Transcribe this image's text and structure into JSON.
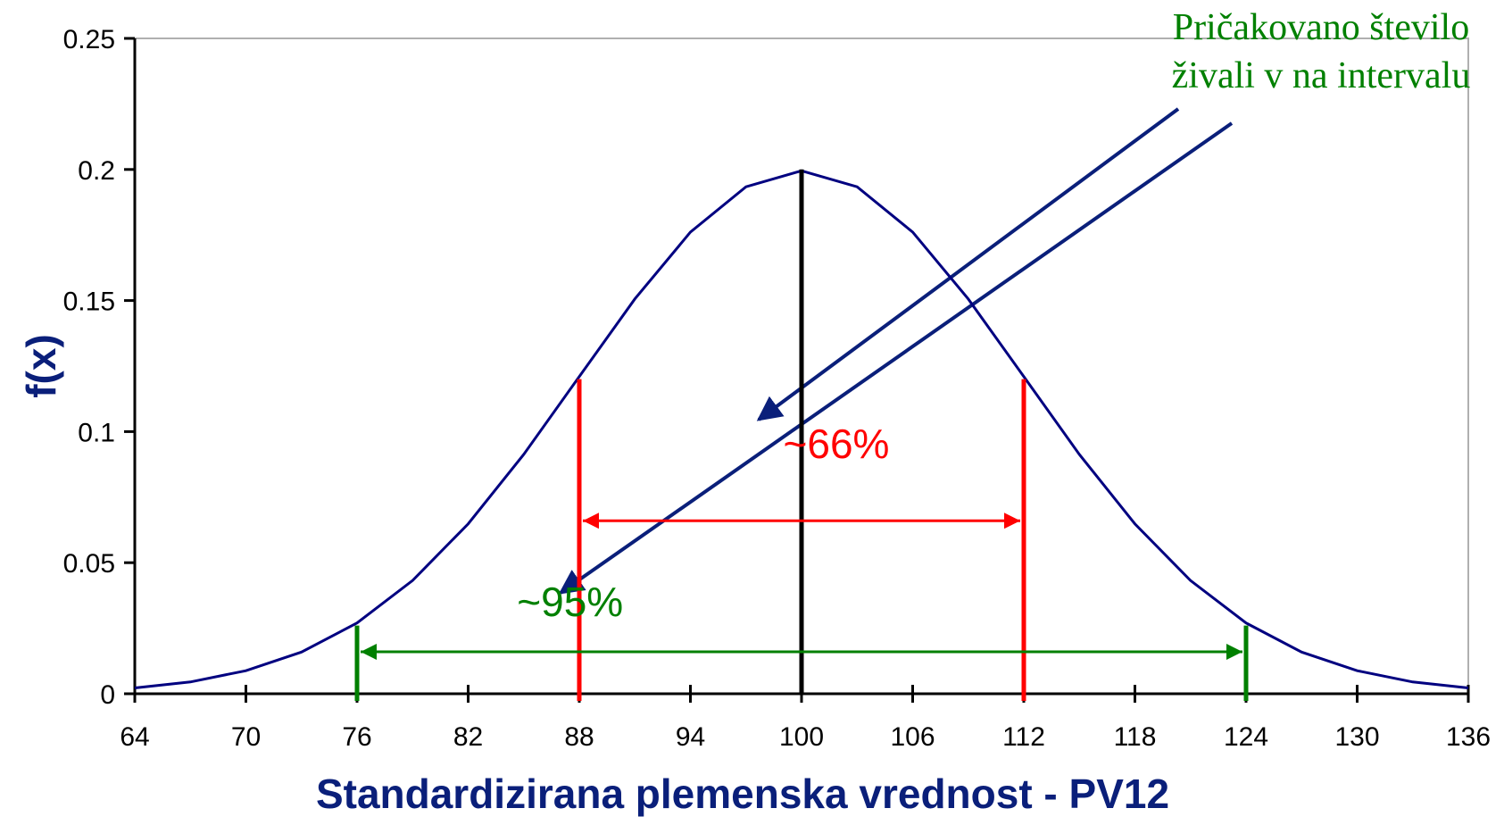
{
  "chart_data": {
    "type": "line",
    "x_label": "Standardizirana plemenska vrednost - PV12",
    "y_label": "f(x)",
    "x": [
      64,
      67,
      70,
      73,
      76,
      79,
      82,
      85,
      88,
      91,
      94,
      97,
      100,
      103,
      106,
      109,
      112,
      115,
      118,
      121,
      124,
      127,
      130,
      133,
      136
    ],
    "series": [
      {
        "color": "#000080",
        "values": [
          0.0022,
          0.0045,
          0.0088,
          0.0159,
          0.027,
          0.0432,
          0.0648,
          0.0913,
          0.121,
          0.1506,
          0.1761,
          0.1934,
          0.1995,
          0.1934,
          0.1761,
          0.1506,
          0.121,
          0.0913,
          0.0648,
          0.0432,
          0.027,
          0.0159,
          0.0088,
          0.0045,
          0.0022
        ]
      }
    ],
    "xlim": [
      64,
      136
    ],
    "xticks": [
      64,
      70,
      76,
      82,
      88,
      94,
      100,
      106,
      112,
      118,
      124,
      130,
      136
    ],
    "ylim": [
      0,
      0.25
    ],
    "yticks": [
      0,
      0.05,
      0.1,
      0.15,
      0.2,
      0.25
    ],
    "center": {
      "x": 100,
      "height": 0.2,
      "color": "#000000"
    },
    "intervals": [
      {
        "from": 88,
        "to": 112,
        "height": 0.12,
        "arrow_y": 0.066,
        "label": "~66%",
        "color": "#ff0000"
      },
      {
        "from": 76,
        "to": 124,
        "height": 0.026,
        "arrow_y": 0.016,
        "label": "~95%",
        "color": "#008000"
      }
    ],
    "annotation": [
      "Pričakovano število",
      "živali v na intervalu"
    ]
  }
}
